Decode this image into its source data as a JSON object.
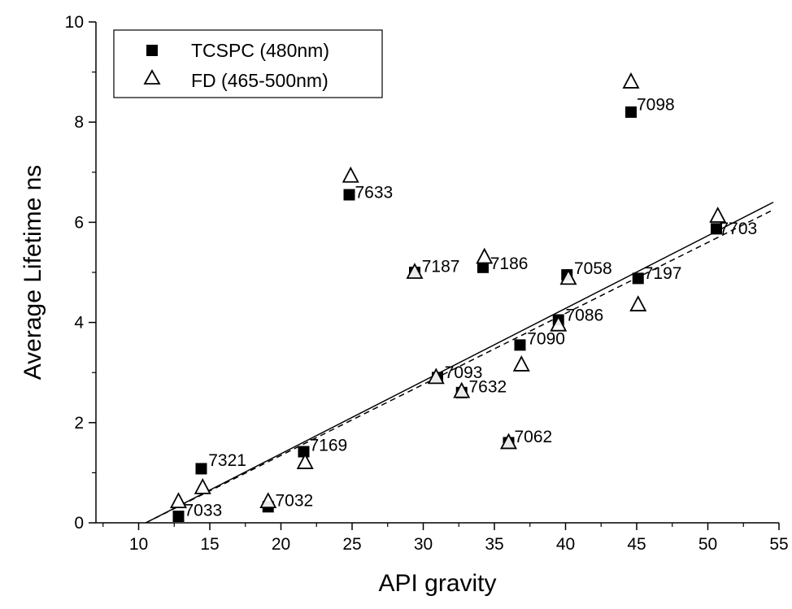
{
  "chart_data": {
    "type": "scatter",
    "xlabel": "API gravity",
    "ylabel": "Average Lifetime ns",
    "xlim": [
      7,
      55
    ],
    "ylim": [
      0,
      10
    ],
    "x_ticks": [
      10,
      15,
      20,
      25,
      30,
      35,
      40,
      45,
      50,
      55
    ],
    "y_ticks": [
      0,
      2,
      4,
      6,
      8,
      10
    ],
    "grid": false,
    "legend_position": "top-left",
    "series": [
      {
        "name": "TCSPC (480nm)",
        "marker": "filled-square",
        "points": [
          {
            "x": 12.8,
            "y": 0.13
          },
          {
            "x": 14.4,
            "y": 1.08
          },
          {
            "x": 19.1,
            "y": 0.32
          },
          {
            "x": 21.6,
            "y": 1.42
          },
          {
            "x": 24.8,
            "y": 6.55
          },
          {
            "x": 29.4,
            "y": 5.0
          },
          {
            "x": 31.0,
            "y": 2.9
          },
          {
            "x": 32.7,
            "y": 2.6
          },
          {
            "x": 34.2,
            "y": 5.1
          },
          {
            "x": 36.0,
            "y": 1.6
          },
          {
            "x": 36.8,
            "y": 3.55
          },
          {
            "x": 39.5,
            "y": 4.05
          },
          {
            "x": 40.1,
            "y": 4.95
          },
          {
            "x": 44.6,
            "y": 8.2
          },
          {
            "x": 45.1,
            "y": 4.88
          },
          {
            "x": 50.6,
            "y": 5.87
          }
        ]
      },
      {
        "name": "FD (465-500nm)",
        "marker": "open-triangle",
        "points": [
          {
            "x": 12.8,
            "y": 0.42
          },
          {
            "x": 14.5,
            "y": 0.7
          },
          {
            "x": 19.1,
            "y": 0.42
          },
          {
            "x": 21.7,
            "y": 1.2
          },
          {
            "x": 24.9,
            "y": 6.92
          },
          {
            "x": 29.4,
            "y": 5.0
          },
          {
            "x": 30.9,
            "y": 2.9
          },
          {
            "x": 32.7,
            "y": 2.62
          },
          {
            "x": 34.3,
            "y": 5.3
          },
          {
            "x": 36.0,
            "y": 1.6
          },
          {
            "x": 36.9,
            "y": 3.15
          },
          {
            "x": 39.5,
            "y": 3.95
          },
          {
            "x": 40.2,
            "y": 4.88
          },
          {
            "x": 44.6,
            "y": 8.8
          },
          {
            "x": 45.1,
            "y": 4.35
          },
          {
            "x": 50.7,
            "y": 6.12
          }
        ]
      }
    ],
    "fit_lines": [
      {
        "style": "solid",
        "x": [
          10.5,
          54.6
        ],
        "y": [
          0.0,
          6.4
        ]
      },
      {
        "style": "dashed",
        "x": [
          10.5,
          54.6
        ],
        "y": [
          0.0,
          6.25
        ]
      }
    ],
    "point_labels": [
      {
        "text": "7033",
        "x": 13.2,
        "y": 0.25
      },
      {
        "text": "7321",
        "x": 14.9,
        "y": 1.25
      },
      {
        "text": "7032",
        "x": 19.6,
        "y": 0.45
      },
      {
        "text": "7169",
        "x": 22.0,
        "y": 1.55
      },
      {
        "text": "7633",
        "x": 25.2,
        "y": 6.6
      },
      {
        "text": "7187",
        "x": 29.9,
        "y": 5.12
      },
      {
        "text": "7186",
        "x": 34.7,
        "y": 5.18
      },
      {
        "text": "7093",
        "x": 31.5,
        "y": 3.0
      },
      {
        "text": "7632",
        "x": 33.2,
        "y": 2.72
      },
      {
        "text": "7062",
        "x": 36.4,
        "y": 1.72
      },
      {
        "text": "7090",
        "x": 37.3,
        "y": 3.68
      },
      {
        "text": "7086",
        "x": 40.0,
        "y": 4.15
      },
      {
        "text": "7058",
        "x": 40.6,
        "y": 5.08
      },
      {
        "text": "7098",
        "x": 45.0,
        "y": 8.35
      },
      {
        "text": "7197",
        "x": 45.5,
        "y": 4.98
      },
      {
        "text": "7703",
        "x": 50.8,
        "y": 5.88
      }
    ]
  }
}
